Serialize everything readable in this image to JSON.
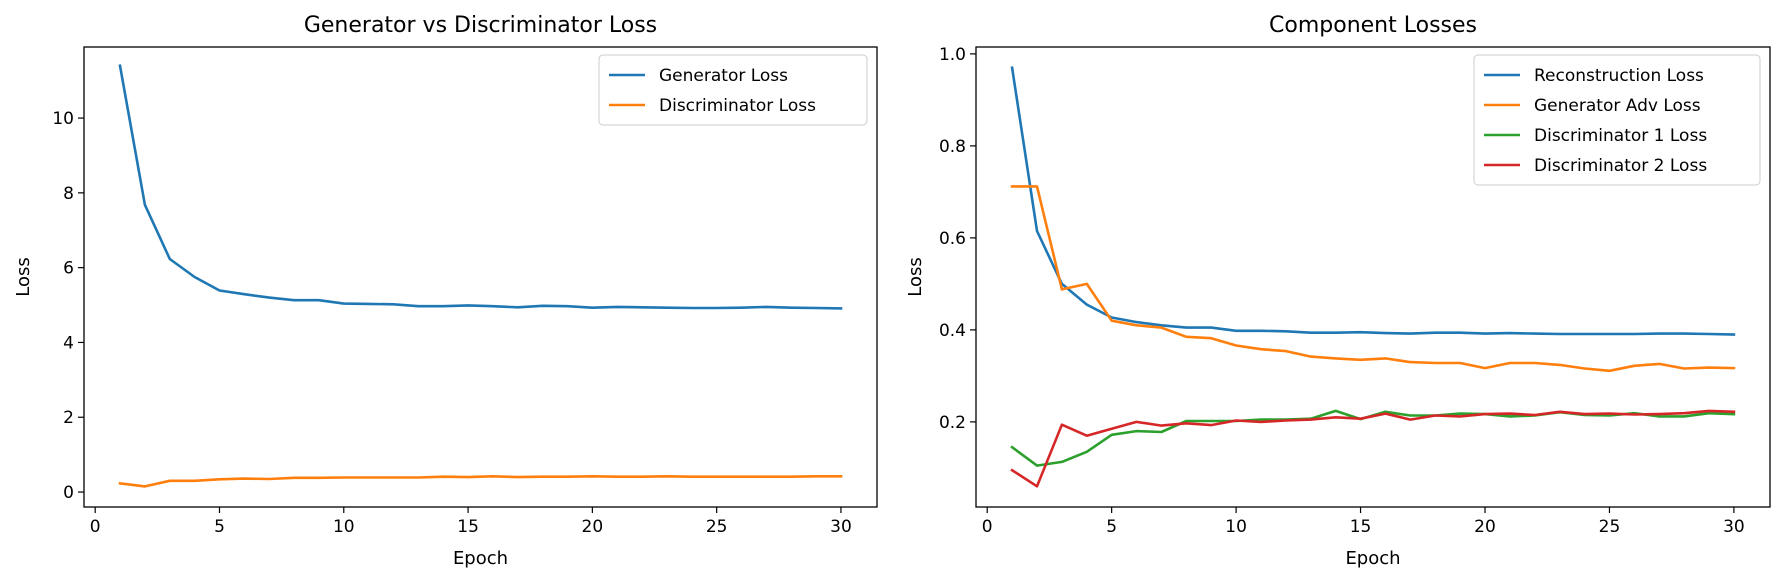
{
  "chart_data": [
    {
      "type": "line",
      "title": "Generator vs Discriminator Loss",
      "xlabel": "Epoch",
      "ylabel": "Loss",
      "xlim": [
        -0.45,
        31.45
      ],
      "ylim": [
        -0.4,
        11.9
      ],
      "xticks": [
        0,
        5,
        10,
        15,
        20,
        25,
        30
      ],
      "yticks": [
        0,
        2,
        4,
        6,
        8,
        10
      ],
      "legend_position": "upper right",
      "grid": false,
      "x": [
        1,
        2,
        3,
        4,
        5,
        6,
        7,
        8,
        9,
        10,
        11,
        12,
        13,
        14,
        15,
        16,
        17,
        18,
        19,
        20,
        21,
        22,
        23,
        24,
        25,
        26,
        27,
        28,
        29,
        30
      ],
      "series": [
        {
          "name": "Generator Loss",
          "color": "#1f77b4",
          "values": [
            11.4,
            7.68,
            6.23,
            5.75,
            5.39,
            5.29,
            5.2,
            5.13,
            5.13,
            5.04,
            5.03,
            5.02,
            4.97,
            4.97,
            4.99,
            4.97,
            4.94,
            4.98,
            4.97,
            4.93,
            4.95,
            4.94,
            4.93,
            4.92,
            4.92,
            4.93,
            4.95,
            4.93,
            4.92,
            4.91
          ]
        },
        {
          "name": "Discriminator Loss",
          "color": "#ff7f0e",
          "values": [
            0.23,
            0.15,
            0.3,
            0.3,
            0.34,
            0.36,
            0.35,
            0.38,
            0.38,
            0.39,
            0.39,
            0.39,
            0.39,
            0.41,
            0.4,
            0.42,
            0.4,
            0.41,
            0.41,
            0.42,
            0.41,
            0.41,
            0.42,
            0.41,
            0.41,
            0.41,
            0.41,
            0.41,
            0.42,
            0.42
          ]
        }
      ]
    },
    {
      "type": "line",
      "title": "Component Losses",
      "xlabel": "Epoch",
      "ylabel": "Loss",
      "xlim": [
        -0.45,
        31.45
      ],
      "ylim": [
        0.015,
        1.015
      ],
      "xticks": [
        0,
        5,
        10,
        15,
        20,
        25,
        30
      ],
      "yticks": [
        0.2,
        0.4,
        0.6,
        0.8,
        1.0
      ],
      "ytick_labels": [
        "0.2",
        "0.4",
        "0.6",
        "0.8",
        "1.0"
      ],
      "legend_position": "upper right",
      "grid": false,
      "x": [
        1,
        2,
        3,
        4,
        5,
        6,
        7,
        8,
        9,
        10,
        11,
        12,
        13,
        14,
        15,
        16,
        17,
        18,
        19,
        20,
        21,
        22,
        23,
        24,
        25,
        26,
        27,
        28,
        29,
        30
      ],
      "series": [
        {
          "name": "Reconstruction Loss",
          "color": "#1f77b4",
          "values": [
            0.97,
            0.615,
            0.5,
            0.455,
            0.427,
            0.417,
            0.41,
            0.405,
            0.405,
            0.398,
            0.398,
            0.397,
            0.394,
            0.394,
            0.395,
            0.393,
            0.392,
            0.394,
            0.394,
            0.392,
            0.393,
            0.392,
            0.391,
            0.391,
            0.391,
            0.391,
            0.392,
            0.392,
            0.391,
            0.39
          ]
        },
        {
          "name": "Generator Adv Loss",
          "color": "#ff7f0e",
          "values": [
            0.712,
            0.712,
            0.488,
            0.5,
            0.42,
            0.41,
            0.405,
            0.385,
            0.382,
            0.366,
            0.358,
            0.354,
            0.342,
            0.338,
            0.335,
            0.338,
            0.33,
            0.328,
            0.328,
            0.317,
            0.328,
            0.328,
            0.324,
            0.316,
            0.311,
            0.322,
            0.326,
            0.316,
            0.318,
            0.317
          ]
        },
        {
          "name": "Discriminator 1 Loss",
          "color": "#2ca02c",
          "values": [
            0.145,
            0.105,
            0.113,
            0.135,
            0.172,
            0.18,
            0.178,
            0.202,
            0.202,
            0.202,
            0.205,
            0.205,
            0.207,
            0.224,
            0.206,
            0.222,
            0.214,
            0.214,
            0.218,
            0.217,
            0.212,
            0.214,
            0.221,
            0.215,
            0.214,
            0.219,
            0.212,
            0.212,
            0.219,
            0.217
          ]
        },
        {
          "name": "Discriminator 2 Loss",
          "color": "#d62728",
          "values": [
            0.095,
            0.06,
            0.194,
            0.17,
            0.185,
            0.2,
            0.192,
            0.197,
            0.193,
            0.203,
            0.2,
            0.203,
            0.205,
            0.21,
            0.207,
            0.218,
            0.205,
            0.214,
            0.212,
            0.217,
            0.218,
            0.215,
            0.222,
            0.217,
            0.218,
            0.216,
            0.217,
            0.219,
            0.224,
            0.222
          ]
        }
      ]
    }
  ]
}
